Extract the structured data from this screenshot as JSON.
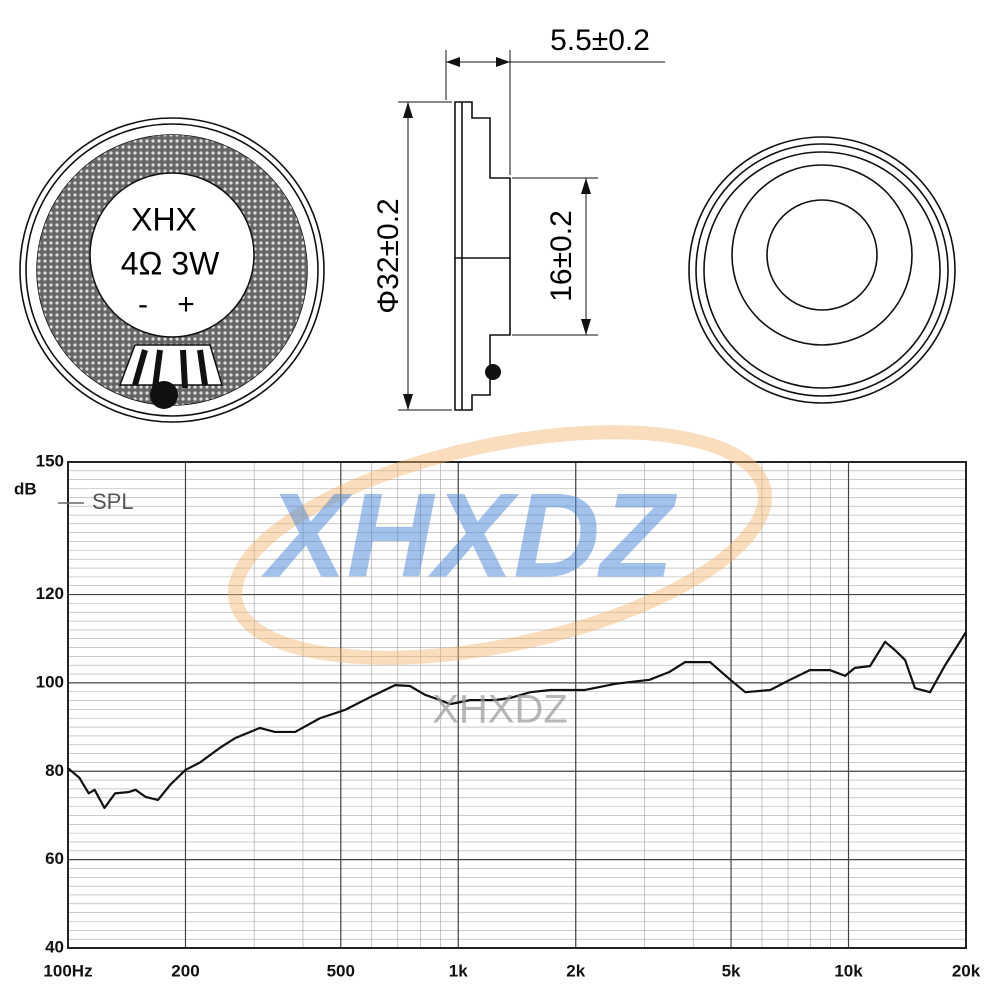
{
  "drawing": {
    "front_label": [
      "XHX",
      "4Ω 3W",
      "-",
      "+"
    ],
    "dimensions": [
      "5.5±0.2",
      "Φ32±0.2",
      "16±0.2"
    ]
  },
  "watermarks": [
    "XHXDZ",
    "XHXDZ"
  ],
  "chart_data": {
    "type": "line",
    "y_unit": "dB",
    "xscale": "log",
    "grid": true,
    "minor_grid": true,
    "xlim": [
      100,
      20000
    ],
    "ylim": [
      40,
      150
    ],
    "xticks": [
      {
        "value": 100,
        "label": "100Hz"
      },
      200,
      500,
      {
        "value": 1000,
        "label": "1k"
      },
      {
        "value": 2000,
        "label": "2k"
      },
      {
        "value": 5000,
        "label": "5k"
      },
      {
        "value": 10000,
        "label": "10k"
      },
      {
        "value": 20000,
        "label": "20k"
      }
    ],
    "yticks": [
      40,
      60,
      80,
      100,
      120,
      150
    ],
    "x": [
      100,
      107,
      113,
      117,
      124,
      132,
      143,
      149,
      158,
      170,
      183,
      200,
      218,
      245,
      268,
      310,
      339,
      382,
      442,
      513,
      595,
      689,
      752,
      822,
      899,
      953,
      1072,
      1241,
      1360,
      1530,
      1722,
      2112,
      2530,
      3090,
      3480,
      3810,
      4420,
      4980,
      5440,
      6300,
      7080,
      7960,
      8960,
      9800,
      10380,
      11350,
      12410,
      13160,
      13960,
      14800,
      16180,
      17680,
      20000
    ],
    "series": [
      {
        "name": "SPL",
        "color": "#111111",
        "values": [
          80.7,
          78.5,
          75,
          75.8,
          71.7,
          75,
          75.3,
          75.8,
          74.2,
          73.5,
          77,
          80.3,
          82,
          85.3,
          87.5,
          89.8,
          88.9,
          88.9,
          92,
          93.9,
          96.8,
          99.5,
          99.3,
          97.3,
          96.1,
          95.2,
          96.1,
          96.1,
          96.6,
          97.9,
          98.4,
          98.4,
          99.8,
          100.7,
          102.5,
          104.7,
          104.7,
          100.7,
          97.9,
          98.4,
          100.7,
          102.9,
          102.9,
          101.6,
          103.4,
          103.8,
          109.3,
          107.4,
          105.2,
          98.8,
          97.9,
          104,
          111.5
        ]
      }
    ]
  }
}
